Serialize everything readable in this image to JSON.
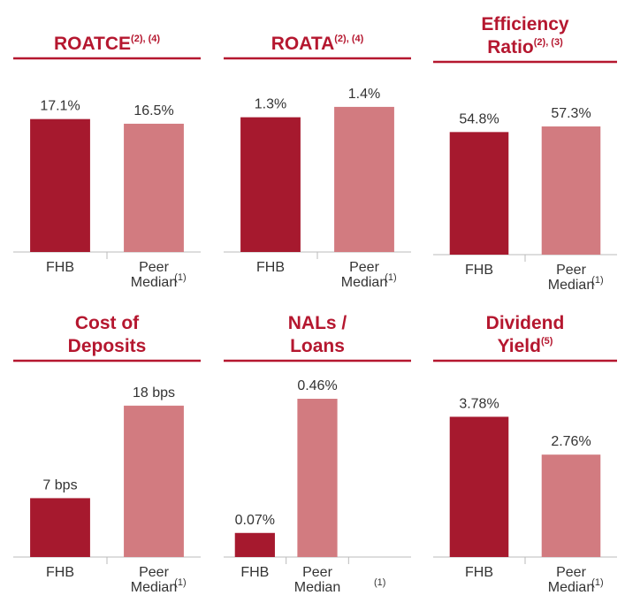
{
  "chart_data": [
    {
      "type": "bar",
      "title_lines": [
        "ROATCE"
      ],
      "title_superscript": "(2), (4)",
      "categories": [
        "FHB",
        "Peer Median"
      ],
      "footnote": "(1)",
      "values": [
        17.1,
        16.5
      ],
      "value_labels": [
        "17.1%",
        "16.5%"
      ],
      "colors": [
        "#a6192e",
        "#d27b80"
      ],
      "ylim": [
        0,
        24
      ]
    },
    {
      "type": "bar",
      "title_lines": [
        "ROATA"
      ],
      "title_superscript": "(2), (4)",
      "categories": [
        "FHB",
        "Peer Median"
      ],
      "footnote": "(1)",
      "values": [
        1.3,
        1.4
      ],
      "value_labels": [
        "1.3%",
        "1.4%"
      ],
      "colors": [
        "#a6192e",
        "#d27b80"
      ],
      "ylim": [
        0,
        1.8
      ]
    },
    {
      "type": "bar",
      "title_lines": [
        "Efficiency",
        "Ratio"
      ],
      "title_superscript": "(2), (3)",
      "categories": [
        "FHB",
        "Peer Median"
      ],
      "footnote": "(1)",
      "values": [
        54.8,
        57.3
      ],
      "value_labels": [
        "54.8%",
        "57.3%"
      ],
      "colors": [
        "#a6192e",
        "#d27b80"
      ],
      "ylim": [
        0,
        83
      ]
    },
    {
      "type": "bar",
      "title_lines": [
        "Cost of",
        "Deposits"
      ],
      "categories": [
        "FHB",
        "Peer Median"
      ],
      "footnote": "(1)",
      "values": [
        7,
        18
      ],
      "value_labels": [
        "7 bps",
        "18 bps"
      ],
      "colors": [
        "#a6192e",
        "#d27b80"
      ],
      "ylim": [
        0,
        22.5
      ]
    },
    {
      "type": "bar",
      "title_lines": [
        "NALs /",
        "Loans"
      ],
      "categories": [
        "FHB",
        "Peer Median"
      ],
      "footnote": "(1)",
      "values": [
        0.07,
        0.46
      ],
      "value_labels": [
        "0.07%",
        "0.46%"
      ],
      "colors": [
        "#a6192e",
        "#d27b80"
      ],
      "ylim": [
        0,
        0.55
      ]
    },
    {
      "type": "bar",
      "title_lines": [
        "Dividend",
        "Yield"
      ],
      "title_superscript": "(5)",
      "categories": [
        "FHB",
        "Peer Median"
      ],
      "footnote": "(1)",
      "values": [
        3.78,
        2.76
      ],
      "value_labels": [
        "3.78%",
        "2.76%"
      ],
      "colors": [
        "#a6192e",
        "#d27b80"
      ],
      "ylim": [
        0,
        5.1
      ]
    }
  ]
}
